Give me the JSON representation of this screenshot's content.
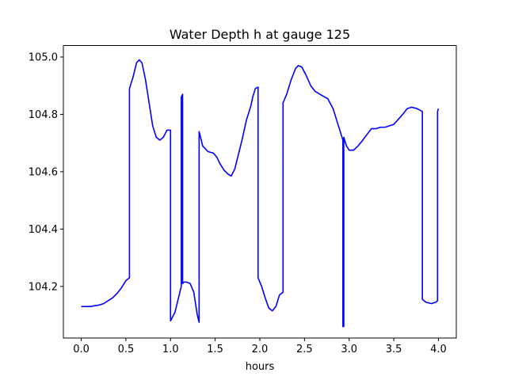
{
  "chart_data": {
    "type": "line",
    "title": "Water Depth h at gauge 125",
    "xlabel": "hours",
    "ylabel": "",
    "xlim": [
      -0.2,
      4.2
    ],
    "ylim": [
      104.02,
      105.04
    ],
    "xticks": [
      0.0,
      0.5,
      1.0,
      1.5,
      2.0,
      2.5,
      3.0,
      3.5,
      4.0
    ],
    "xtick_labels": [
      "0.0",
      "0.5",
      "1.0",
      "1.5",
      "2.0",
      "2.5",
      "3.0",
      "3.5",
      "4.0"
    ],
    "yticks": [
      104.2,
      104.4,
      104.6,
      104.8,
      105.0
    ],
    "ytick_labels": [
      "104.2",
      "104.4",
      "104.6",
      "104.8",
      "105.0"
    ],
    "grid": false,
    "series": [
      {
        "color": "#0000ff",
        "x": [
          0.0,
          0.1,
          0.2,
          0.25,
          0.3,
          0.35,
          0.4,
          0.45,
          0.5,
          0.54,
          0.54,
          0.58,
          0.62,
          0.65,
          0.68,
          0.72,
          0.76,
          0.8,
          0.84,
          0.88,
          0.92,
          0.96,
          1.0,
          1.0,
          1.05,
          1.12,
          1.12,
          1.135,
          1.135,
          1.15,
          1.15,
          1.18,
          1.22,
          1.26,
          1.3,
          1.32,
          1.32,
          1.36,
          1.42,
          1.48,
          1.52,
          1.55,
          1.6,
          1.65,
          1.68,
          1.72,
          1.76,
          1.8,
          1.85,
          1.9,
          1.92,
          1.95,
          1.98,
          1.98,
          2.02,
          2.06,
          2.1,
          2.14,
          2.18,
          2.22,
          2.26,
          2.26,
          2.3,
          2.35,
          2.4,
          2.43,
          2.47,
          2.52,
          2.57,
          2.62,
          2.7,
          2.76,
          2.82,
          2.88,
          2.93,
          2.93,
          2.94,
          2.94,
          2.97,
          3.0,
          3.05,
          3.1,
          3.14,
          3.2,
          3.25,
          3.3,
          3.35,
          3.4,
          3.5,
          3.6,
          3.65,
          3.7,
          3.76,
          3.82,
          3.82,
          3.86,
          3.92,
          3.97,
          3.99,
          3.99,
          4.0
        ],
        "y": [
          104.13,
          104.13,
          104.135,
          104.14,
          104.15,
          104.16,
          104.175,
          104.195,
          104.22,
          104.23,
          104.89,
          104.93,
          104.98,
          104.99,
          104.98,
          104.92,
          104.84,
          104.76,
          104.72,
          104.71,
          104.72,
          104.745,
          104.745,
          104.08,
          104.11,
          104.2,
          104.86,
          104.87,
          104.21,
          104.215,
          104.215,
          104.215,
          104.21,
          104.18,
          104.1,
          104.075,
          104.74,
          104.69,
          104.67,
          104.665,
          104.65,
          104.63,
          104.605,
          104.59,
          104.585,
          104.61,
          104.66,
          104.71,
          104.78,
          104.83,
          104.86,
          104.89,
          104.895,
          104.23,
          104.2,
          104.16,
          104.125,
          104.115,
          104.13,
          104.17,
          104.18,
          104.84,
          104.87,
          104.92,
          104.96,
          104.97,
          104.965,
          104.935,
          104.9,
          104.88,
          104.865,
          104.855,
          104.82,
          104.76,
          104.71,
          104.06,
          104.06,
          104.72,
          104.69,
          104.675,
          104.675,
          104.69,
          104.705,
          104.73,
          104.75,
          104.75,
          104.755,
          104.755,
          104.765,
          104.8,
          104.82,
          104.825,
          104.82,
          104.81,
          104.155,
          104.145,
          104.14,
          104.145,
          104.15,
          104.81,
          104.82
        ]
      }
    ]
  }
}
